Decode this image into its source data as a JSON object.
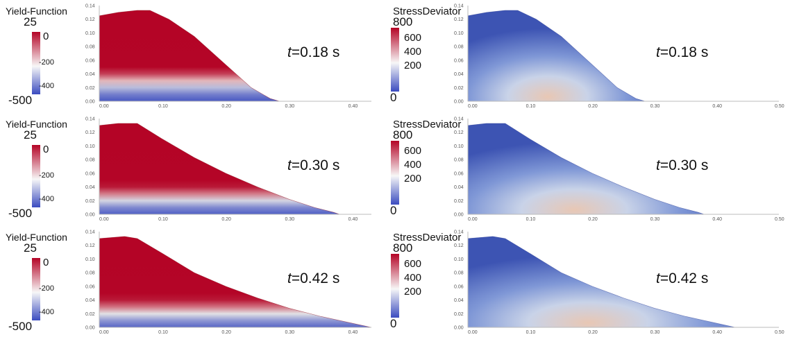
{
  "chart_data": [
    {
      "type": "heatmap",
      "panel": "yield-function",
      "time_label": "t",
      "time_value": "=0.18 s",
      "legend": {
        "title": "Yield-Function",
        "max": "25",
        "ticks": [
          "0",
          "-200",
          "-400"
        ],
        "min": "-500",
        "colors": [
          "#b40426",
          "#f7f7f7",
          "#3b4cc0"
        ]
      },
      "x_ticks": [
        "0.00",
        "0.10",
        "0.20",
        "0.30",
        "0.40"
      ],
      "y_ticks": [
        "0.14",
        "0.12",
        "0.10",
        "0.08",
        "0.06",
        "0.04",
        "0.02",
        "0.00"
      ],
      "xlim": [
        0,
        0.43
      ],
      "ylim": [
        0,
        0.14
      ],
      "profile": [
        [
          0,
          0.125
        ],
        [
          0.03,
          0.13
        ],
        [
          0.06,
          0.133
        ],
        [
          0.08,
          0.133
        ],
        [
          0.11,
          0.12
        ],
        [
          0.15,
          0.095
        ],
        [
          0.18,
          0.07
        ],
        [
          0.21,
          0.045
        ],
        [
          0.24,
          0.02
        ],
        [
          0.27,
          0.004
        ],
        [
          0.285,
          0
        ]
      ],
      "bands": [
        {
          "y": 0,
          "v": -480
        },
        {
          "y": 0.01,
          "v": -420
        },
        {
          "y": 0.02,
          "v": -320
        },
        {
          "y": 0.03,
          "v": -180
        },
        {
          "y": 0.04,
          "v": -60
        },
        {
          "y": 0.05,
          "v": 0
        }
      ]
    },
    {
      "type": "heatmap",
      "panel": "stress-deviator",
      "time_label": "t",
      "time_value": "=0.18 s",
      "legend": {
        "title": "StressDeviator",
        "max": "800",
        "ticks": [
          "600",
          "400",
          "200"
        ],
        "min": "0",
        "colors": [
          "#b40426",
          "#f7f7f7",
          "#3b4cc0"
        ]
      },
      "x_ticks": [
        "0.00",
        "0.10",
        "0.20",
        "0.30",
        "0.40",
        "0.50"
      ],
      "y_ticks": [
        "0.14",
        "0.12",
        "0.10",
        "0.08",
        "0.06",
        "0.04",
        "0.02",
        "0.00"
      ],
      "xlim": [
        0,
        0.5
      ],
      "ylim": [
        0,
        0.14
      ],
      "profile": [
        [
          0,
          0.125
        ],
        [
          0.03,
          0.13
        ],
        [
          0.06,
          0.133
        ],
        [
          0.08,
          0.133
        ],
        [
          0.11,
          0.12
        ],
        [
          0.15,
          0.095
        ],
        [
          0.18,
          0.07
        ],
        [
          0.21,
          0.045
        ],
        [
          0.24,
          0.02
        ],
        [
          0.27,
          0.004
        ],
        [
          0.285,
          0
        ]
      ]
    },
    {
      "type": "heatmap",
      "panel": "yield-function",
      "time_label": "t",
      "time_value": "=0.30 s",
      "legend": {
        "title": "Yield-Function",
        "max": "25",
        "ticks": [
          "0",
          "-200",
          "-400"
        ],
        "min": "-500",
        "colors": [
          "#b40426",
          "#f7f7f7",
          "#3b4cc0"
        ]
      },
      "x_ticks": [
        "0.00",
        "0.10",
        "0.20",
        "0.30",
        "0.40"
      ],
      "y_ticks": [
        "0.14",
        "0.12",
        "0.10",
        "0.08",
        "0.06",
        "0.04",
        "0.02",
        "0.00"
      ],
      "xlim": [
        0,
        0.43
      ],
      "ylim": [
        0,
        0.14
      ],
      "profile": [
        [
          0,
          0.13
        ],
        [
          0.03,
          0.133
        ],
        [
          0.06,
          0.133
        ],
        [
          0.1,
          0.11
        ],
        [
          0.15,
          0.083
        ],
        [
          0.2,
          0.06
        ],
        [
          0.25,
          0.04
        ],
        [
          0.3,
          0.022
        ],
        [
          0.34,
          0.01
        ],
        [
          0.37,
          0.003
        ],
        [
          0.38,
          0
        ]
      ],
      "bands": [
        {
          "y": 0,
          "v": -470
        },
        {
          "y": 0.01,
          "v": -400
        },
        {
          "y": 0.02,
          "v": -280
        },
        {
          "y": 0.03,
          "v": -120
        },
        {
          "y": 0.04,
          "v": -20
        },
        {
          "y": 0.05,
          "v": 0
        }
      ]
    },
    {
      "type": "heatmap",
      "panel": "stress-deviator",
      "time_label": "t",
      "time_value": "=0.30 s",
      "legend": {
        "title": "StressDeviator",
        "max": "800",
        "ticks": [
          "600",
          "400",
          "200"
        ],
        "min": "0",
        "colors": [
          "#b40426",
          "#f7f7f7",
          "#3b4cc0"
        ]
      },
      "x_ticks": [
        "0.00",
        "0.10",
        "0.20",
        "0.30",
        "0.40",
        "0.50"
      ],
      "y_ticks": [
        "0.14",
        "0.12",
        "0.10",
        "0.08",
        "0.06",
        "0.04",
        "0.02",
        "0.00"
      ],
      "xlim": [
        0,
        0.5
      ],
      "ylim": [
        0,
        0.14
      ],
      "profile": [
        [
          0,
          0.13
        ],
        [
          0.03,
          0.133
        ],
        [
          0.06,
          0.133
        ],
        [
          0.1,
          0.11
        ],
        [
          0.15,
          0.083
        ],
        [
          0.2,
          0.06
        ],
        [
          0.25,
          0.04
        ],
        [
          0.3,
          0.022
        ],
        [
          0.34,
          0.01
        ],
        [
          0.37,
          0.003
        ],
        [
          0.38,
          0
        ]
      ]
    },
    {
      "type": "heatmap",
      "panel": "yield-function",
      "time_label": "t",
      "time_value": "=0.42 s",
      "legend": {
        "title": "Yield-Function",
        "max": "25",
        "ticks": [
          "0",
          "-200",
          "-400"
        ],
        "min": "-500",
        "colors": [
          "#b40426",
          "#f7f7f7",
          "#3b4cc0"
        ]
      },
      "x_ticks": [
        "0.00",
        "0.10",
        "0.20",
        "0.30",
        "0.40"
      ],
      "y_ticks": [
        "0.14",
        "0.12",
        "0.10",
        "0.08",
        "0.06",
        "0.04",
        "0.02",
        "0.00"
      ],
      "xlim": [
        0,
        0.43
      ],
      "ylim": [
        0,
        0.14
      ],
      "profile": [
        [
          0,
          0.13
        ],
        [
          0.04,
          0.133
        ],
        [
          0.06,
          0.13
        ],
        [
          0.1,
          0.108
        ],
        [
          0.15,
          0.08
        ],
        [
          0.2,
          0.06
        ],
        [
          0.25,
          0.043
        ],
        [
          0.3,
          0.028
        ],
        [
          0.35,
          0.016
        ],
        [
          0.4,
          0.006
        ],
        [
          0.43,
          0
        ]
      ],
      "bands": [
        {
          "y": 0,
          "v": -460
        },
        {
          "y": 0.01,
          "v": -380
        },
        {
          "y": 0.02,
          "v": -260
        },
        {
          "y": 0.03,
          "v": -110
        },
        {
          "y": 0.04,
          "v": -20
        },
        {
          "y": 0.05,
          "v": 0
        }
      ]
    },
    {
      "type": "heatmap",
      "panel": "stress-deviator",
      "time_label": "t",
      "time_value": "=0.42 s",
      "legend": {
        "title": "StressDeviator",
        "max": "800",
        "ticks": [
          "600",
          "400",
          "200"
        ],
        "min": "0",
        "colors": [
          "#b40426",
          "#f7f7f7",
          "#3b4cc0"
        ]
      },
      "x_ticks": [
        "0.00",
        "0.10",
        "0.20",
        "0.30",
        "0.40",
        "0.50"
      ],
      "y_ticks": [
        "0.14",
        "0.12",
        "0.10",
        "0.08",
        "0.06",
        "0.04",
        "0.02",
        "0.00"
      ],
      "xlim": [
        0,
        0.5
      ],
      "ylim": [
        0,
        0.14
      ],
      "profile": [
        [
          0,
          0.13
        ],
        [
          0.04,
          0.133
        ],
        [
          0.06,
          0.13
        ],
        [
          0.1,
          0.108
        ],
        [
          0.15,
          0.08
        ],
        [
          0.2,
          0.06
        ],
        [
          0.25,
          0.043
        ],
        [
          0.3,
          0.028
        ],
        [
          0.35,
          0.016
        ],
        [
          0.4,
          0.006
        ],
        [
          0.43,
          0
        ]
      ]
    }
  ]
}
